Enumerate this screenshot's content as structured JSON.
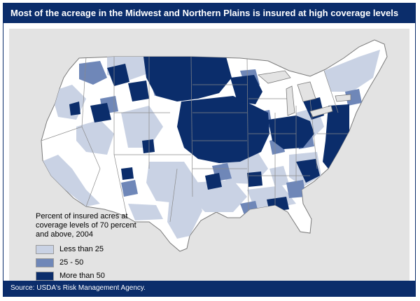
{
  "title": "Most of the acreage in the Midwest and Northern Plains is insured at high coverage levels",
  "legend": {
    "title_lines": [
      "Percent of insured acres at",
      "coverage levels of 70 percent",
      "and above, 2004"
    ],
    "items": [
      {
        "label": "Less than 25",
        "color": "#c9d2e4"
      },
      {
        "label": "25 - 50",
        "color": "#6f87b8"
      },
      {
        "label": "More than 50",
        "color": "#0b2d6b"
      }
    ]
  },
  "source": "Source: USDA's Risk Management Agency.",
  "colors": {
    "frame": "#0b2d6b",
    "panel_background": "#e3e3e3",
    "land_no_data": "#ffffff",
    "state_border": "#8a8a8a"
  }
}
